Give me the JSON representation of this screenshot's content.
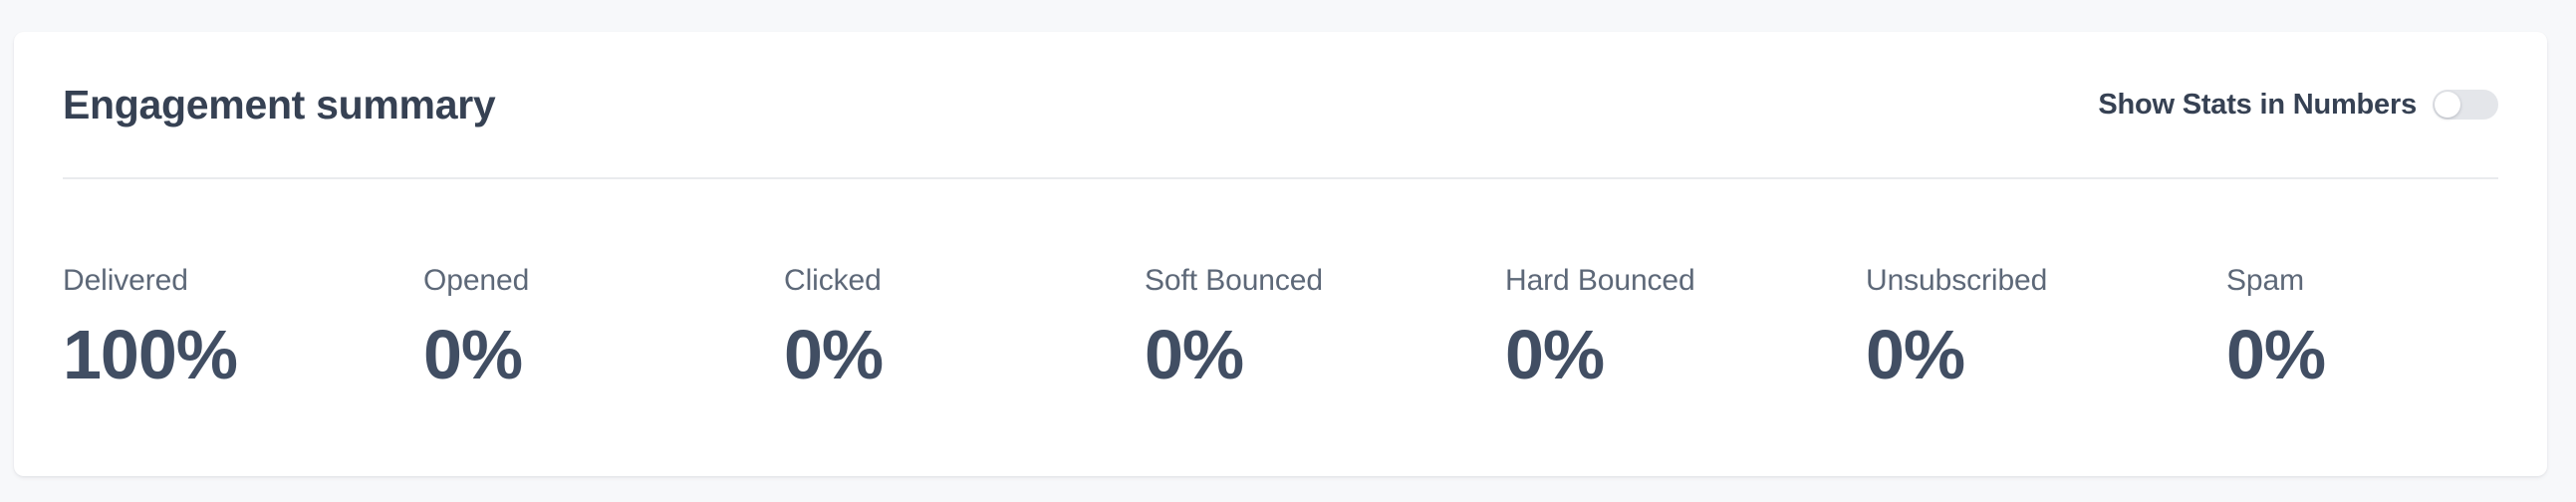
{
  "card": {
    "title": "Engagement summary",
    "toggle": {
      "label": "Show Stats in Numbers",
      "state": "off",
      "checked": "false"
    }
  },
  "stats": {
    "columns": [
      {
        "label": "Delivered",
        "value": "100%"
      },
      {
        "label": "Opened",
        "value": "0%"
      },
      {
        "label": "Clicked",
        "value": "0%"
      },
      {
        "label": "Soft Bounced",
        "value": "0%"
      },
      {
        "label": "Hard Bounced",
        "value": "0%"
      },
      {
        "label": "Unsubscribed",
        "value": "0%"
      },
      {
        "label": "Spam",
        "value": "0%"
      }
    ]
  },
  "colors": {
    "page_background": "#f7f8fa",
    "card_background": "#ffffff",
    "title_text": "#364153",
    "stat_label_text": "#5d6878",
    "stat_value_text": "#414e63",
    "divider": "#e9ebee",
    "toggle_track_off": "#e4e6ea",
    "toggle_knob": "#ffffff"
  }
}
